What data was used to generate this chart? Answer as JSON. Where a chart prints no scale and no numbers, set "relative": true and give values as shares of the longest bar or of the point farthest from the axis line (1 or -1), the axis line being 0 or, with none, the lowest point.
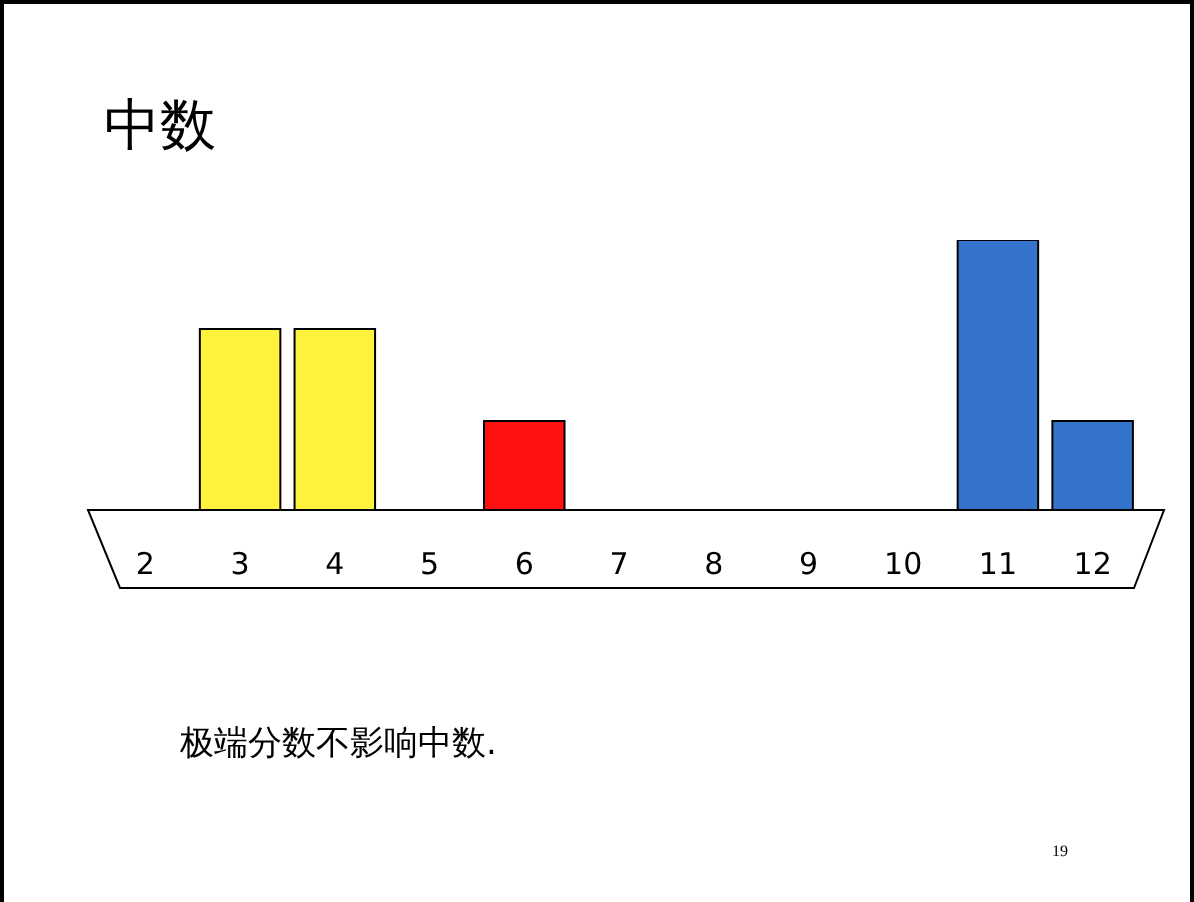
{
  "chart_data": {
    "type": "bar",
    "title": "中数",
    "relative": true,
    "grid": false,
    "tick_labels": "x",
    "categories": [
      "2",
      "3",
      "4",
      "5",
      "6",
      "7",
      "8",
      "9",
      "10",
      "11",
      "12"
    ],
    "series": [
      {
        "colors": [
          "#ffffff",
          "#fff23c",
          "#fff23c",
          "#ffffff",
          "#ff1111",
          "#ffffff",
          "#ffffff",
          "#ffffff",
          "#ffffff",
          "#3574cc",
          "#3574cc"
        ],
        "values": [
          null,
          0.67,
          0.67,
          null,
          0.33,
          null,
          null,
          null,
          null,
          1,
          0.33
        ]
      }
    ],
    "annotations": [
      "极端分数不影响中数.",
      "19"
    ]
  }
}
